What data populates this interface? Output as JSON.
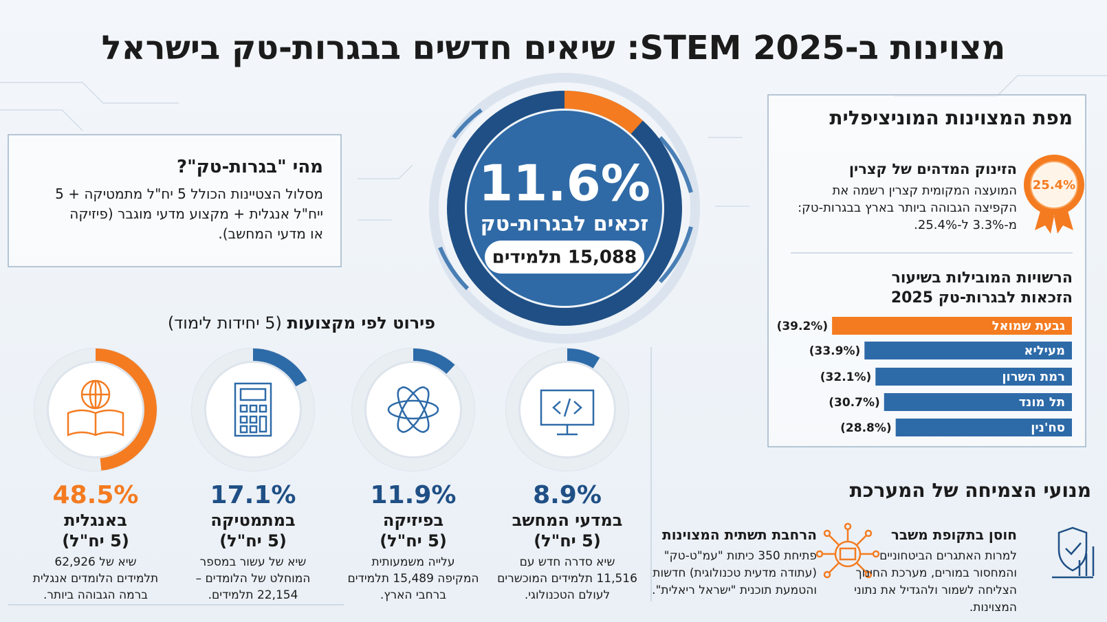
{
  "title": "מצוינות ב-STEM 2025: שיאים חדשים בבגרות-טק בישראל",
  "center": {
    "value": 11.6,
    "value_label": "11.6%",
    "caption": "זכאים לבגרות-טק",
    "students": "15,088 תלמידים"
  },
  "what_is": {
    "title": "מהי \"בגרות-טק\"?",
    "lines": [
      "מסלול הצטיינות הכולל 5 יח\"ל מתמטיקה + 5",
      "ייח\"ל אנגלית + מקצוע מדעי מוגבר (פיזיקה",
      "או מדעי המחשב)."
    ]
  },
  "subjects": {
    "heading": "פירוט לפי מקצועות",
    "subheading": "(5 יחידות לימוד)",
    "items": [
      {
        "value": 8.9,
        "value_label": "8.9%",
        "name": "במדעי המחשב",
        "units": "(5 יח\"ל)",
        "color": "#2d6aa8",
        "lines": [
          "שיא סדרה חדש עם",
          "11,516 תלמידים המוכשרים",
          "לעולם הטכנולוגי."
        ]
      },
      {
        "value": 11.9,
        "value_label": "11.9%",
        "name": "בפיזיקה",
        "units": "(5 יח\"ל)",
        "color": "#2d6aa8",
        "lines": [
          "עלייה משמעותית",
          "המקיפה 15,489 תלמידים",
          "ברחבי הארץ."
        ]
      },
      {
        "value": 17.1,
        "value_label": "17.1%",
        "name": "במתמטיקה",
        "units": "(5 יח\"ל)",
        "color": "#2d6aa8",
        "lines": [
          "שיא של עשור במספר",
          "המוחלט של הלומדים –",
          "22,154 תלמידים."
        ]
      },
      {
        "value": 48.5,
        "value_label": "48.5%",
        "name": "באנגלית",
        "units": "(5 יח\"ל)",
        "color": "#f47b20",
        "lines": [
          "שיא של 62,926",
          "תלמידים הלומדים אנגלית",
          "ברמה הגבוהה ביותר."
        ]
      }
    ]
  },
  "municipal": {
    "heading": "מפת המצוינות המוניציפלית",
    "highlight": {
      "badge": "25.4%",
      "title": "הזינוק המדהים של קצרין",
      "lines": [
        "המועצה המקומית קצרין רשמה את",
        "הקפיצה הגבוהה ביותר בארץ בבגרות-טק:",
        "מ-3.3% ל-25.4%."
      ]
    },
    "ranking": {
      "title_lines": [
        "הרשויות המובילות בשיעור",
        "הזכאות לבגרות-טק 2025"
      ],
      "categories": [
        "גבעת שמואל",
        "מעיליא",
        "רמת השרון",
        "תל מונד",
        "סח'נין"
      ],
      "values": [
        39.2,
        33.9,
        32.1,
        30.7,
        28.8
      ],
      "value_labels": [
        "(39.2%)",
        "(33.9%)",
        "(32.1%)",
        "(30.7%)",
        "(28.8%)"
      ],
      "colors": [
        "#f47b20",
        "#2d6aa8",
        "#2d6aa8",
        "#2d6aa8",
        "#2d6aa8"
      ]
    }
  },
  "growth": {
    "heading": "מנועי הצמיחה של המערכת",
    "items": [
      {
        "title": "חוסן בתקופת משבר",
        "lines": [
          "למרות האתגרים הביטחוניים",
          "והמחסור במורים, מערכת החינוך",
          "הצליחה לשמור ולהגדיל את נתוני",
          "המצוינות."
        ]
      },
      {
        "title": "הרחבת תשתית המצוינות",
        "lines": [
          "פתיחת 350 כיתות \"עמ\"ט-טק\"",
          "(עתודה מדעית טכנולוגית) חדשות",
          "והטמעת תוכנית \"ישראל ריאלית\"."
        ]
      }
    ]
  }
}
